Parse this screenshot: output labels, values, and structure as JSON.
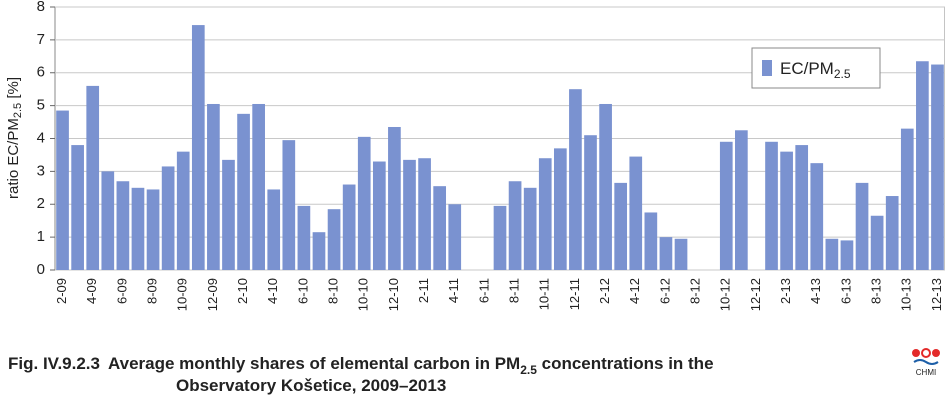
{
  "chart_data": {
    "type": "bar",
    "y_label": "ratio EC/PM",
    "y_label_subscript": "2.5",
    "y_label_unit": " [%]",
    "caption_number": "Fig. IV.9.2.3",
    "caption_line1": "Average monthly shares of elemental carbon in PM",
    "caption_subscript": "2.5",
    "caption_line1_end": " concentrations in the",
    "caption_line2": "Observatory Košetice, 2009–2013",
    "logo_text": "CHMI",
    "categories": [
      "2-09",
      null,
      "4-09",
      null,
      "6-09",
      null,
      "8-09",
      null,
      "10-09",
      null,
      "12-09",
      null,
      "2-10",
      null,
      "4-10",
      null,
      "6-10",
      null,
      "8-10",
      null,
      "10-10",
      null,
      "12-10",
      null,
      "2-11",
      null,
      "4-11",
      null,
      "6-11",
      null,
      "8-11",
      null,
      "10-11",
      null,
      "12-11",
      null,
      "2-12",
      null,
      "4-12",
      null,
      "6-12",
      null,
      "8-12",
      null,
      "10-12",
      null,
      "12-12",
      null,
      "2-13",
      null,
      "4-13",
      null,
      "6-13",
      null,
      "8-13",
      null,
      "10-13",
      null,
      "12-13"
    ],
    "series": [
      {
        "name": "EC/PM",
        "name_subscript": "2.5",
        "color": "#7a92d0",
        "values": [
          4.85,
          3.8,
          5.6,
          3.0,
          2.7,
          2.5,
          2.45,
          3.15,
          3.6,
          7.45,
          5.05,
          3.35,
          4.75,
          5.05,
          2.45,
          3.95,
          1.95,
          1.15,
          1.85,
          2.6,
          4.05,
          3.3,
          4.35,
          3.35,
          3.4,
          2.55,
          2.0,
          null,
          null,
          1.95,
          2.7,
          2.5,
          3.4,
          3.7,
          5.5,
          4.1,
          5.05,
          2.65,
          3.45,
          1.75,
          1.0,
          0.95,
          null,
          null,
          3.9,
          4.25,
          null,
          3.9,
          3.6,
          3.8,
          3.25,
          0.95,
          0.9,
          2.65,
          1.65,
          2.25,
          4.3,
          6.35,
          6.25
        ]
      }
    ],
    "ylim": [
      0,
      8
    ],
    "yticks": [
      0,
      1,
      2,
      3,
      4,
      5,
      6,
      7,
      8
    ],
    "grid": true,
    "legend": "upper right"
  }
}
